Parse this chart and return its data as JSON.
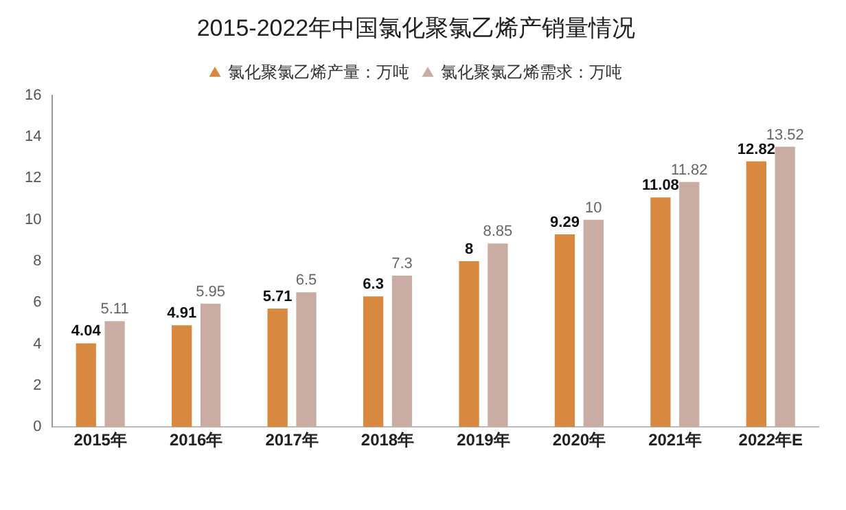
{
  "chart_data": {
    "type": "bar",
    "title": "2015-2022年中国氯化聚氯乙烯产销量情况",
    "categories": [
      "2015年",
      "2016年",
      "2017年",
      "2018年",
      "2019年",
      "2020年",
      "2021年",
      "2022年E"
    ],
    "series": [
      {
        "name": "氯化聚氯乙烯产量：万吨",
        "color": "#d9893f",
        "values": [
          4.04,
          4.91,
          5.71,
          6.3,
          8.0,
          9.29,
          11.08,
          12.82
        ]
      },
      {
        "name": "氯化聚氯乙烯需求：万吨",
        "color": "#c9ada4",
        "values": [
          5.11,
          5.95,
          6.5,
          7.3,
          8.85,
          10,
          11.82,
          13.52
        ]
      }
    ],
    "ylim": [
      0,
      16
    ],
    "yticks": [
      0,
      2,
      4,
      6,
      8,
      10,
      12,
      14,
      16
    ],
    "grid": false,
    "legend": "top",
    "data_labels": true
  }
}
